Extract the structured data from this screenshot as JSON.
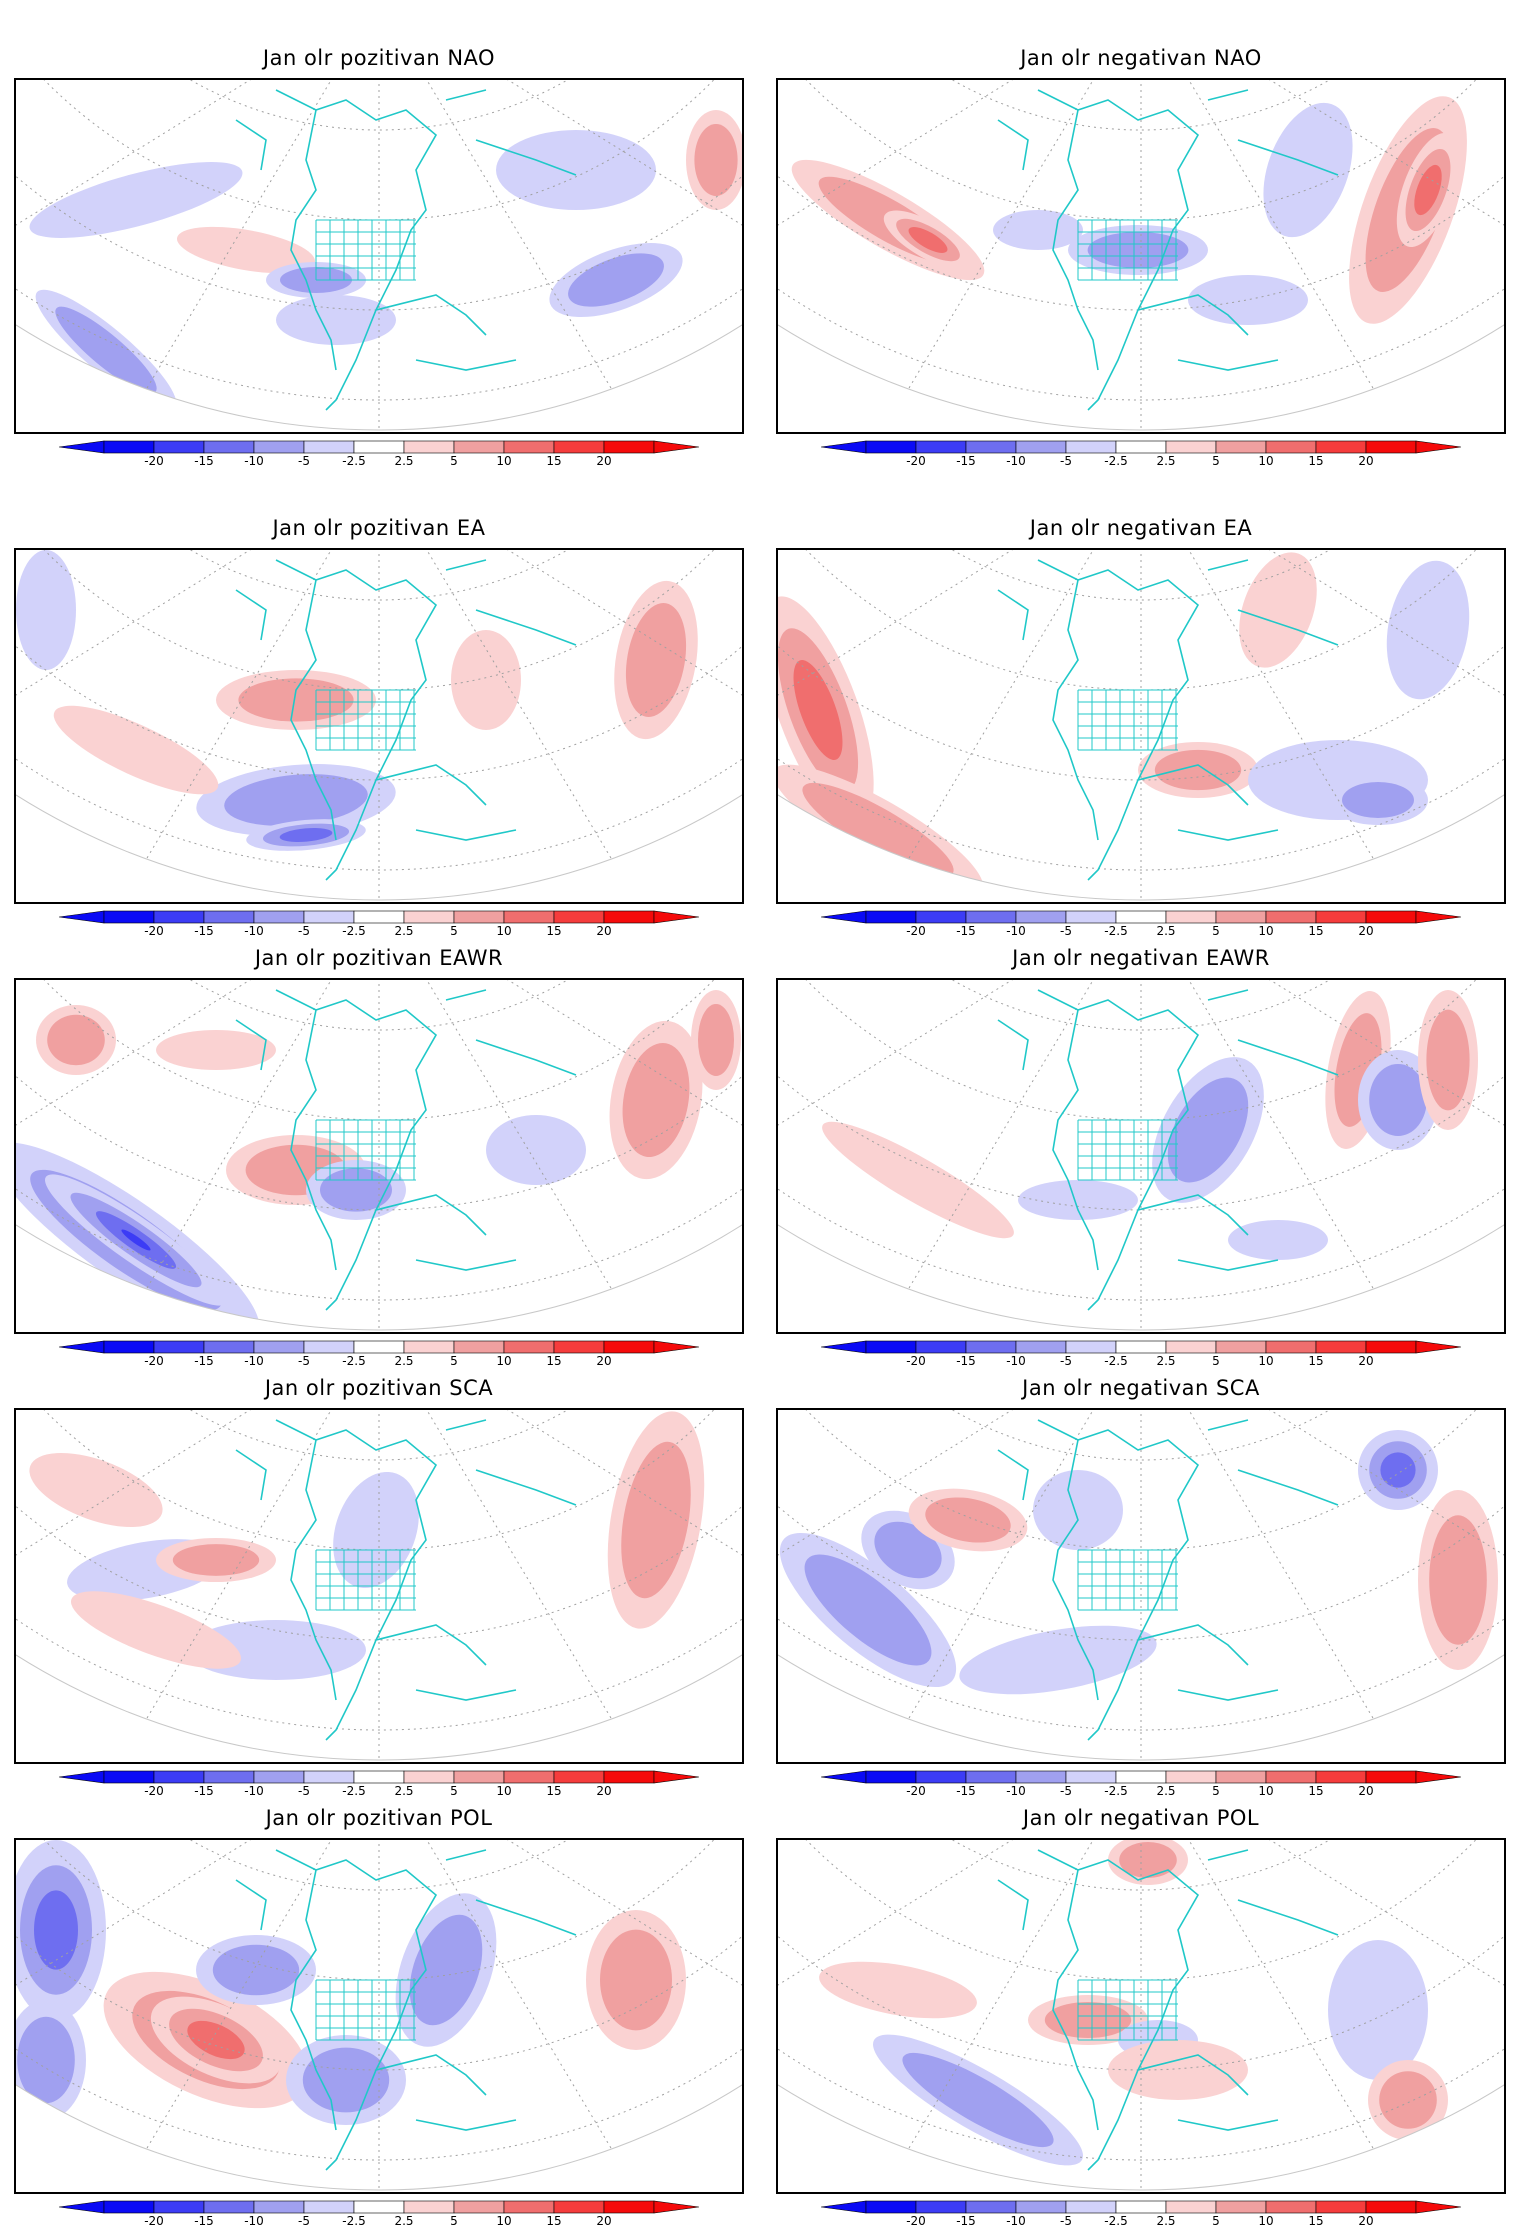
{
  "panels": [
    {
      "title": "Jan olr pozitivan NAO",
      "index": 0
    },
    {
      "title": "Jan olr negativan NAO",
      "index": 1
    },
    {
      "title": "Jan olr pozitivan EA",
      "index": 2
    },
    {
      "title": "Jan olr negativan EA",
      "index": 3
    },
    {
      "title": "Jan olr pozitivan EAWR",
      "index": 4
    },
    {
      "title": "Jan olr negativan EAWR",
      "index": 5
    },
    {
      "title": "Jan olr pozitivan SCA",
      "index": 6
    },
    {
      "title": "Jan olr negativan SCA",
      "index": 7
    },
    {
      "title": "Jan olr pozitivan POL",
      "index": 8
    },
    {
      "title": "Jan olr negativan POL",
      "index": 9
    }
  ],
  "colorbar": {
    "labels": [
      "-20",
      "-15",
      "-10",
      "-5",
      "-2.5",
      "2.5",
      "5",
      "10",
      "15",
      "20"
    ],
    "colors": [
      "#0a0af5",
      "#3c3cf5",
      "#6e6ef0",
      "#a0a0f0",
      "#d2d2fa",
      "#ffffff",
      "#fad2d2",
      "#f0a0a0",
      "#f06e6e",
      "#f53c3c",
      "#f50a0a"
    ]
  },
  "colors": {
    "coastline": "#20c8c8",
    "grid": "#a0a0a0"
  },
  "legend_note": "OLR anomaly shading: blue negative, red positive"
}
